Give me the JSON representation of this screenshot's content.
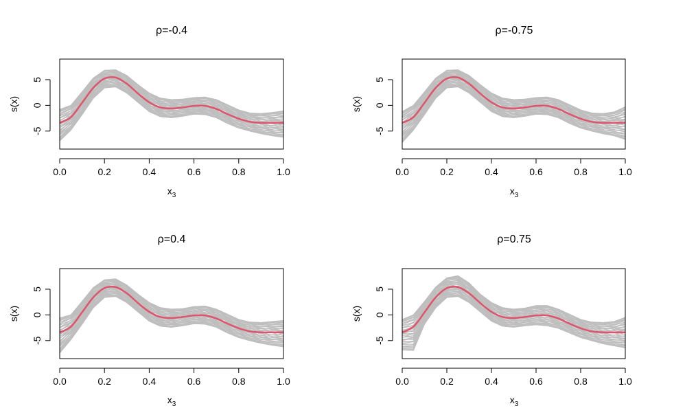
{
  "colors": {
    "background": "#ffffff",
    "axis": "#000000",
    "band": "#bebebe",
    "true_curve": "#df536b"
  },
  "chart_data": [
    {
      "type": "line",
      "title": "ρ=-0.4",
      "xlabel_base": "x",
      "xlabel_sub": "3",
      "ylabel": "s(x)",
      "xlim": [
        0.0,
        1.0
      ],
      "ylim": [
        -8.5,
        9.0
      ],
      "xticks": [
        "0.0",
        "0.2",
        "0.4",
        "0.6",
        "0.8",
        "1.0"
      ],
      "yticks": [
        "-5",
        "0",
        "5"
      ],
      "series": [
        {
          "name": "true function",
          "x": [
            0.0,
            0.05,
            0.1,
            0.15,
            0.2,
            0.25,
            0.3,
            0.35,
            0.4,
            0.45,
            0.5,
            0.55,
            0.6,
            0.65,
            0.7,
            0.75,
            0.8,
            0.85,
            0.9,
            0.95,
            1.0
          ],
          "y": [
            -3.4,
            -2.3,
            0.5,
            3.4,
            5.2,
            5.4,
            4.2,
            2.3,
            0.6,
            -0.4,
            -0.6,
            -0.4,
            -0.1,
            -0.1,
            -0.7,
            -1.7,
            -2.6,
            -3.2,
            -3.4,
            -3.4,
            -3.4
          ]
        },
        {
          "name": "band upper",
          "x": [
            0.0,
            0.05,
            0.1,
            0.15,
            0.2,
            0.25,
            0.3,
            0.35,
            0.4,
            0.45,
            0.5,
            0.55,
            0.6,
            0.65,
            0.7,
            0.75,
            0.8,
            0.85,
            0.9,
            0.95,
            1.0
          ],
          "y": [
            -0.8,
            0.0,
            2.6,
            5.3,
            6.8,
            6.9,
            5.8,
            4.0,
            2.4,
            1.4,
            1.1,
            1.2,
            1.5,
            1.6,
            1.1,
            0.1,
            -0.9,
            -1.5,
            -1.6,
            -1.4,
            -1.1
          ]
        },
        {
          "name": "band lower",
          "x": [
            0.0,
            0.05,
            0.1,
            0.15,
            0.2,
            0.25,
            0.3,
            0.35,
            0.4,
            0.45,
            0.5,
            0.55,
            0.6,
            0.65,
            0.7,
            0.75,
            0.8,
            0.85,
            0.9,
            0.95,
            1.0
          ],
          "y": [
            -6.9,
            -4.8,
            -1.8,
            1.4,
            3.4,
            3.6,
            2.4,
            0.6,
            -1.2,
            -2.2,
            -2.4,
            -2.1,
            -1.7,
            -1.8,
            -2.4,
            -3.5,
            -4.4,
            -5.0,
            -5.5,
            -5.9,
            -6.2
          ]
        }
      ]
    },
    {
      "type": "line",
      "title": "ρ=-0.75",
      "xlabel_base": "x",
      "xlabel_sub": "3",
      "ylabel": "s(x)",
      "xlim": [
        0.0,
        1.0
      ],
      "ylim": [
        -8.5,
        9.0
      ],
      "xticks": [
        "0.0",
        "0.2",
        "0.4",
        "0.6",
        "0.8",
        "1.0"
      ],
      "yticks": [
        "-5",
        "0",
        "5"
      ],
      "series": [
        {
          "name": "true function",
          "x": [
            0.0,
            0.05,
            0.1,
            0.15,
            0.2,
            0.25,
            0.3,
            0.35,
            0.4,
            0.45,
            0.5,
            0.55,
            0.6,
            0.65,
            0.7,
            0.75,
            0.8,
            0.85,
            0.9,
            0.95,
            1.0
          ],
          "y": [
            -3.4,
            -2.3,
            0.5,
            3.4,
            5.2,
            5.4,
            4.2,
            2.3,
            0.6,
            -0.4,
            -0.6,
            -0.4,
            -0.1,
            -0.1,
            -0.7,
            -1.7,
            -2.6,
            -3.2,
            -3.4,
            -3.4,
            -3.4
          ]
        },
        {
          "name": "band upper",
          "x": [
            0.0,
            0.05,
            0.1,
            0.15,
            0.2,
            0.25,
            0.3,
            0.35,
            0.4,
            0.45,
            0.5,
            0.55,
            0.6,
            0.65,
            0.7,
            0.75,
            0.8,
            0.85,
            0.9,
            0.95,
            1.0
          ],
          "y": [
            -1.2,
            0.0,
            2.6,
            5.3,
            6.8,
            6.9,
            5.8,
            4.0,
            2.4,
            1.4,
            1.1,
            1.2,
            1.5,
            1.6,
            1.1,
            0.1,
            -0.9,
            -1.5,
            -1.6,
            -1.3,
            -0.3
          ]
        },
        {
          "name": "band lower",
          "x": [
            0.0,
            0.05,
            0.1,
            0.15,
            0.2,
            0.25,
            0.3,
            0.35,
            0.4,
            0.45,
            0.5,
            0.55,
            0.6,
            0.65,
            0.7,
            0.75,
            0.8,
            0.85,
            0.9,
            0.95,
            1.0
          ],
          "y": [
            -7.2,
            -4.8,
            -1.8,
            1.4,
            3.4,
            3.6,
            2.4,
            0.6,
            -1.2,
            -2.2,
            -2.4,
            -2.1,
            -1.7,
            -1.8,
            -2.4,
            -3.5,
            -4.4,
            -5.0,
            -5.5,
            -5.9,
            -6.6
          ]
        }
      ]
    },
    {
      "type": "line",
      "title": "ρ=0.4",
      "xlabel_base": "x",
      "xlabel_sub": "3",
      "ylabel": "s(x)",
      "xlim": [
        0.0,
        1.0
      ],
      "ylim": [
        -8.5,
        9.0
      ],
      "xticks": [
        "0.0",
        "0.2",
        "0.4",
        "0.6",
        "0.8",
        "1.0"
      ],
      "yticks": [
        "-5",
        "0",
        "5"
      ],
      "series": [
        {
          "name": "true function",
          "x": [
            0.0,
            0.05,
            0.1,
            0.15,
            0.2,
            0.25,
            0.3,
            0.35,
            0.4,
            0.45,
            0.5,
            0.55,
            0.6,
            0.65,
            0.7,
            0.75,
            0.8,
            0.85,
            0.9,
            0.95,
            1.0
          ],
          "y": [
            -3.4,
            -2.3,
            0.5,
            3.4,
            5.2,
            5.4,
            4.2,
            2.3,
            0.6,
            -0.4,
            -0.6,
            -0.4,
            -0.1,
            -0.1,
            -0.7,
            -1.7,
            -2.6,
            -3.2,
            -3.4,
            -3.4,
            -3.4
          ]
        },
        {
          "name": "band upper",
          "x": [
            0.0,
            0.05,
            0.1,
            0.15,
            0.2,
            0.25,
            0.3,
            0.35,
            0.4,
            0.45,
            0.5,
            0.55,
            0.6,
            0.65,
            0.7,
            0.75,
            0.8,
            0.85,
            0.9,
            0.95,
            1.0
          ],
          "y": [
            -0.6,
            0.0,
            2.6,
            5.3,
            6.8,
            7.0,
            5.8,
            4.0,
            2.4,
            1.4,
            1.1,
            1.2,
            1.6,
            1.7,
            1.1,
            0.1,
            -0.9,
            -1.4,
            -1.5,
            -1.3,
            -1.1
          ]
        },
        {
          "name": "band lower",
          "x": [
            0.0,
            0.05,
            0.1,
            0.15,
            0.2,
            0.25,
            0.3,
            0.35,
            0.4,
            0.45,
            0.5,
            0.55,
            0.6,
            0.65,
            0.7,
            0.75,
            0.8,
            0.85,
            0.9,
            0.95,
            1.0
          ],
          "y": [
            -7.4,
            -4.8,
            -1.8,
            1.4,
            3.4,
            3.6,
            2.4,
            0.6,
            -1.2,
            -2.2,
            -2.4,
            -2.1,
            -1.7,
            -1.8,
            -2.4,
            -3.5,
            -4.4,
            -5.0,
            -5.5,
            -5.9,
            -6.2
          ]
        }
      ]
    },
    {
      "type": "line",
      "title": "ρ=0.75",
      "xlabel_base": "x",
      "xlabel_sub": "3",
      "ylabel": "s(x)",
      "xlim": [
        0.0,
        1.0
      ],
      "ylim": [
        -8.5,
        9.0
      ],
      "xticks": [
        "0.0",
        "0.2",
        "0.4",
        "0.6",
        "0.8",
        "1.0"
      ],
      "yticks": [
        "-5",
        "0",
        "5"
      ],
      "series": [
        {
          "name": "true function",
          "x": [
            0.0,
            0.05,
            0.1,
            0.15,
            0.2,
            0.25,
            0.3,
            0.35,
            0.4,
            0.45,
            0.5,
            0.55,
            0.6,
            0.65,
            0.7,
            0.75,
            0.8,
            0.85,
            0.9,
            0.95,
            1.0
          ],
          "y": [
            -3.4,
            -2.3,
            0.5,
            3.4,
            5.2,
            5.4,
            4.2,
            2.3,
            0.6,
            -0.4,
            -0.6,
            -0.4,
            -0.1,
            -0.1,
            -0.7,
            -1.7,
            -2.6,
            -3.2,
            -3.4,
            -3.4,
            -3.4
          ]
        },
        {
          "name": "band upper",
          "x": [
            0.0,
            0.05,
            0.1,
            0.15,
            0.2,
            0.25,
            0.3,
            0.35,
            0.4,
            0.45,
            0.5,
            0.55,
            0.6,
            0.65,
            0.7,
            0.75,
            0.8,
            0.85,
            0.9,
            0.95,
            1.0
          ],
          "y": [
            -0.9,
            0.0,
            2.6,
            5.4,
            7.2,
            7.6,
            6.2,
            4.0,
            2.4,
            1.4,
            1.1,
            1.3,
            1.8,
            1.8,
            1.1,
            0.1,
            -0.9,
            -1.4,
            -1.5,
            -1.3,
            -0.5
          ]
        },
        {
          "name": "band lower",
          "x": [
            0.0,
            0.05,
            0.1,
            0.15,
            0.2,
            0.25,
            0.3,
            0.35,
            0.4,
            0.45,
            0.5,
            0.55,
            0.6,
            0.65,
            0.7,
            0.75,
            0.8,
            0.85,
            0.9,
            0.95,
            1.0
          ],
          "y": [
            -6.8,
            -6.9,
            -1.8,
            1.4,
            3.4,
            3.6,
            2.4,
            0.6,
            -1.2,
            -2.2,
            -2.4,
            -2.1,
            -1.9,
            -2.1,
            -2.6,
            -3.5,
            -4.4,
            -5.0,
            -5.6,
            -6.0,
            -6.4
          ]
        }
      ]
    }
  ]
}
